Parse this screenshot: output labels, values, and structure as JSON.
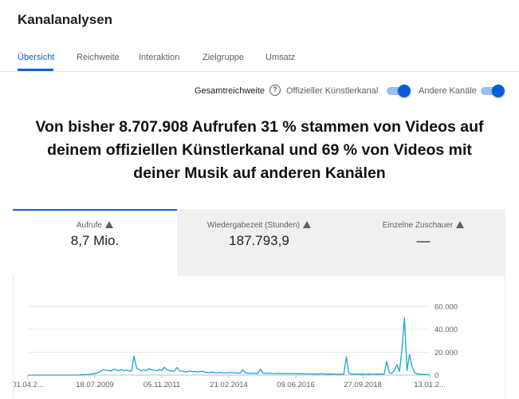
{
  "header": {
    "title": "Kanalanalysen"
  },
  "tabs": [
    {
      "label": "Übersicht",
      "active": true
    },
    {
      "label": "Reichweite",
      "active": false
    },
    {
      "label": "Interaktion",
      "active": false
    },
    {
      "label": "Zielgruppe",
      "active": false
    },
    {
      "label": "Umsatz",
      "active": false
    }
  ],
  "filters": {
    "total_reach_label": "Gesamtreichweite",
    "official_channel_label": "Offizieller Künstlerkanal",
    "official_channel_on": true,
    "other_channels_label": "Andere Kanäle",
    "other_channels_on": true
  },
  "headline": {
    "line1": "Von bisher 8.707.908 Aufrufen 31 % stammen von Videos auf",
    "line2": "deinem offiziellen Künstlerkanal und 69 % von Videos mit",
    "line3": "deiner Musik auf anderen Kanälen"
  },
  "metrics": [
    {
      "label": "Aufrufe",
      "value": "8,7 Mio.",
      "active": true
    },
    {
      "label": "Wiedergabezeit (Stunden)",
      "value": "187.793,9",
      "active": false
    },
    {
      "label": "Einzelne Zuschauer",
      "value": "—",
      "active": false
    }
  ],
  "colors": {
    "accent": "#065fd4",
    "line": "#1aa3d9"
  },
  "chart_data": {
    "type": "line",
    "x_ticks": [
      "01.04.2...",
      "18.07.2009",
      "05.11.2011",
      "21.02.2014",
      "09.06.2016",
      "27.09.2018",
      "13.01.2..."
    ],
    "y_ticks": [
      "60.000",
      "40.000",
      "20.000",
      "0"
    ],
    "ylim": [
      0,
      60000
    ],
    "grid": true,
    "series": [
      {
        "values": [
          0,
          0,
          0,
          0,
          0,
          0,
          0,
          0,
          0,
          0,
          0,
          0,
          0,
          0,
          0,
          0,
          0,
          0,
          0,
          0,
          100,
          200,
          300,
          400,
          600,
          800,
          1200,
          1600,
          2400,
          3600,
          4800,
          4200,
          4000,
          3600,
          5200,
          4400,
          4000,
          4800,
          3800,
          4400,
          3600,
          3400,
          16500,
          6000,
          4800,
          3800,
          4600,
          3800,
          5600,
          4400,
          4200,
          3800,
          5000,
          4000,
          6800,
          4600,
          4000,
          3400,
          3600,
          6600,
          3800,
          3400,
          3000,
          2800,
          3800,
          3000,
          3200,
          2800,
          3000,
          3400,
          2600,
          2200,
          2400,
          2600,
          2200,
          2000,
          2400,
          2000,
          1800,
          1800,
          2200,
          2000,
          1900,
          1800,
          1600,
          4800,
          2000,
          1600,
          1500,
          1700,
          1400,
          1500,
          5200,
          1600,
          1500,
          1700,
          1500,
          1400,
          1300,
          1500,
          1300,
          1400,
          1200,
          1300,
          1200,
          1400,
          1200,
          1100,
          1000,
          1200,
          1000,
          1100,
          1000,
          900,
          1000,
          900,
          1100,
          900,
          800,
          900,
          800,
          1000,
          800,
          700,
          800,
          700,
          16000,
          1500,
          900,
          800,
          1000,
          800,
          900,
          800,
          700,
          900,
          800,
          700,
          900,
          800,
          1000,
          800,
          12000,
          2000,
          1500,
          4000,
          9000,
          3000,
          22000,
          50000,
          4000,
          18000,
          8000,
          2000,
          1000,
          800,
          600,
          500,
          400,
          300
        ]
      }
    ]
  }
}
